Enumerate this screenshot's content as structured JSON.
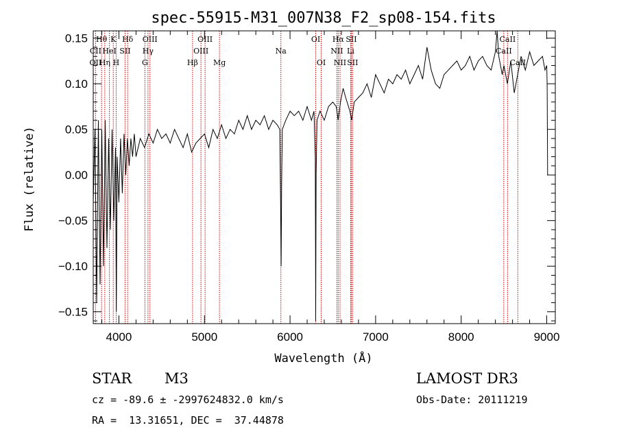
{
  "chart_data": {
    "type": "line",
    "title": "spec-55915-M31_007N38_F2_sp08-154.fits",
    "xlabel": "Wavelength (Å)",
    "ylabel": "Flux (relative)",
    "xlim": [
      3700,
      9100
    ],
    "ylim": [
      -0.163,
      0.158
    ],
    "xticks": [
      4000,
      5000,
      6000,
      7000,
      8000,
      9000
    ],
    "xtick_labels": [
      "4000",
      "5000",
      "6000",
      "7000",
      "8000",
      "9000"
    ],
    "yticks": [
      -0.15,
      -0.1,
      -0.05,
      0.0,
      0.05,
      0.1,
      0.15
    ],
    "ytick_labels": [
      "−0.15",
      "−0.10",
      "−0.05",
      "0.00",
      "0.05",
      "0.10",
      "0.15"
    ],
    "series": [
      {
        "name": "flux",
        "points": [
          [
            3700,
            -0.03
          ],
          [
            3720,
            0.05
          ],
          [
            3740,
            -0.14
          ],
          [
            3760,
            0.06
          ],
          [
            3780,
            -0.12
          ],
          [
            3800,
            0.05
          ],
          [
            3820,
            -0.1
          ],
          [
            3840,
            0.06
          ],
          [
            3860,
            -0.08
          ],
          [
            3880,
            0.04
          ],
          [
            3900,
            -0.06
          ],
          [
            3920,
            0.05
          ],
          [
            3940,
            -0.05
          ],
          [
            3960,
            0.03
          ],
          [
            3970,
            -0.15
          ],
          [
            3980,
            0.02
          ],
          [
            4000,
            -0.03
          ],
          [
            4020,
            0.04
          ],
          [
            4040,
            -0.02
          ],
          [
            4060,
            0.045
          ],
          [
            4080,
            0.0
          ],
          [
            4100,
            0.04
          ],
          [
            4120,
            0.01
          ],
          [
            4140,
            0.04
          ],
          [
            4160,
            0.02
          ],
          [
            4180,
            0.045
          ],
          [
            4200,
            0.02
          ],
          [
            4250,
            0.04
          ],
          [
            4300,
            0.03
          ],
          [
            4350,
            0.045
          ],
          [
            4400,
            0.035
          ],
          [
            4450,
            0.05
          ],
          [
            4500,
            0.04
          ],
          [
            4550,
            0.045
          ],
          [
            4600,
            0.035
          ],
          [
            4650,
            0.05
          ],
          [
            4700,
            0.04
          ],
          [
            4750,
            0.03
          ],
          [
            4800,
            0.045
          ],
          [
            4850,
            0.025
          ],
          [
            4900,
            0.035
          ],
          [
            4950,
            0.04
          ],
          [
            5000,
            0.045
          ],
          [
            5050,
            0.03
          ],
          [
            5100,
            0.05
          ],
          [
            5150,
            0.04
          ],
          [
            5200,
            0.055
          ],
          [
            5250,
            0.04
          ],
          [
            5300,
            0.05
          ],
          [
            5350,
            0.045
          ],
          [
            5400,
            0.06
          ],
          [
            5450,
            0.05
          ],
          [
            5500,
            0.065
          ],
          [
            5550,
            0.05
          ],
          [
            5600,
            0.06
          ],
          [
            5650,
            0.055
          ],
          [
            5700,
            0.065
          ],
          [
            5750,
            0.05
          ],
          [
            5800,
            0.06
          ],
          [
            5850,
            0.055
          ],
          [
            5880,
            0.05
          ],
          [
            5890,
            -0.03
          ],
          [
            5896,
            -0.1
          ],
          [
            5902,
            -0.01
          ],
          [
            5910,
            0.05
          ],
          [
            5950,
            0.06
          ],
          [
            6000,
            0.07
          ],
          [
            6050,
            0.065
          ],
          [
            6100,
            0.07
          ],
          [
            6150,
            0.06
          ],
          [
            6200,
            0.075
          ],
          [
            6250,
            0.06
          ],
          [
            6280,
            0.07
          ],
          [
            6295,
            0.02
          ],
          [
            6300,
            -0.16
          ],
          [
            6305,
            0.0
          ],
          [
            6315,
            0.06
          ],
          [
            6350,
            0.07
          ],
          [
            6400,
            0.06
          ],
          [
            6450,
            0.075
          ],
          [
            6500,
            0.08
          ],
          [
            6540,
            0.075
          ],
          [
            6563,
            0.06
          ],
          [
            6590,
            0.08
          ],
          [
            6620,
            0.095
          ],
          [
            6650,
            0.085
          ],
          [
            6700,
            0.07
          ],
          [
            6720,
            0.06
          ],
          [
            6750,
            0.08
          ],
          [
            6800,
            0.085
          ],
          [
            6850,
            0.09
          ],
          [
            6900,
            0.1
          ],
          [
            6950,
            0.085
          ],
          [
            7000,
            0.11
          ],
          [
            7050,
            0.1
          ],
          [
            7100,
            0.09
          ],
          [
            7150,
            0.105
          ],
          [
            7200,
            0.1
          ],
          [
            7250,
            0.11
          ],
          [
            7300,
            0.105
          ],
          [
            7350,
            0.115
          ],
          [
            7400,
            0.1
          ],
          [
            7450,
            0.11
          ],
          [
            7500,
            0.12
          ],
          [
            7550,
            0.105
          ],
          [
            7600,
            0.14
          ],
          [
            7650,
            0.115
          ],
          [
            7700,
            0.1
          ],
          [
            7750,
            0.095
          ],
          [
            7800,
            0.11
          ],
          [
            7850,
            0.115
          ],
          [
            7900,
            0.12
          ],
          [
            7950,
            0.125
          ],
          [
            8000,
            0.115
          ],
          [
            8050,
            0.12
          ],
          [
            8100,
            0.13
          ],
          [
            8150,
            0.115
          ],
          [
            8200,
            0.125
          ],
          [
            8250,
            0.13
          ],
          [
            8300,
            0.12
          ],
          [
            8350,
            0.115
          ],
          [
            8400,
            0.135
          ],
          [
            8420,
            0.16
          ],
          [
            8440,
            0.13
          ],
          [
            8480,
            0.11
          ],
          [
            8500,
            0.12
          ],
          [
            8540,
            0.1
          ],
          [
            8580,
            0.125
          ],
          [
            8620,
            0.09
          ],
          [
            8660,
            0.11
          ],
          [
            8700,
            0.13
          ],
          [
            8750,
            0.115
          ],
          [
            8800,
            0.135
          ],
          [
            8850,
            0.12
          ],
          [
            8900,
            0.125
          ],
          [
            8950,
            0.13
          ],
          [
            8980,
            0.115
          ],
          [
            9000,
            0.12
          ],
          [
            9005,
            0.1
          ],
          [
            9010,
            0.0
          ]
        ]
      }
    ],
    "line_labels": [
      {
        "label": "Hθ",
        "x": 3797,
        "row": 1
      },
      {
        "label": "K",
        "x": 3934,
        "row": 1
      },
      {
        "label": "Hδ",
        "x": 4102,
        "row": 1
      },
      {
        "label": "OIII",
        "x": 4363,
        "row": 1
      },
      {
        "label": "OIII",
        "x": 5007,
        "row": 1
      },
      {
        "label": "OI",
        "x": 6300,
        "row": 1
      },
      {
        "label": "Hα",
        "x": 6563,
        "row": 1
      },
      {
        "label": "SII",
        "x": 6716,
        "row": 1
      },
      {
        "label": "CaII",
        "x": 8542,
        "row": 1
      },
      {
        "label": "CII",
        "x": 3727,
        "row": 2
      },
      {
        "label": "HeI",
        "x": 3889,
        "row": 2
      },
      {
        "label": "SII",
        "x": 4072,
        "row": 2
      },
      {
        "label": "Hγ",
        "x": 4340,
        "row": 2
      },
      {
        "label": "OIII",
        "x": 4959,
        "row": 2
      },
      {
        "label": "Na",
        "x": 5893,
        "row": 2
      },
      {
        "label": "NII",
        "x": 6548,
        "row": 2
      },
      {
        "label": "Li",
        "x": 6708,
        "row": 2
      },
      {
        "label": "CaII",
        "x": 8498,
        "row": 2
      },
      {
        "label": "OII",
        "x": 3727,
        "row": 3
      },
      {
        "label": "Hη",
        "x": 3835,
        "row": 3
      },
      {
        "label": "H",
        "x": 3968,
        "row": 3
      },
      {
        "label": "G",
        "x": 4304,
        "row": 3
      },
      {
        "label": "Hβ",
        "x": 4861,
        "row": 3
      },
      {
        "label": "Mg",
        "x": 5175,
        "row": 3
      },
      {
        "label": "OI",
        "x": 6364,
        "row": 3
      },
      {
        "label": "NII",
        "x": 6584,
        "row": 3
      },
      {
        "label": "SII",
        "x": 6731,
        "row": 3
      },
      {
        "label": "CaII",
        "x": 8662,
        "row": 3
      }
    ],
    "line_positions": [
      3727,
      3797,
      3835,
      3889,
      3934,
      3968,
      4072,
      4102,
      4304,
      4340,
      4363,
      4861,
      4959,
      5007,
      5175,
      5893,
      6300,
      6364,
      6548,
      6563,
      6584,
      6708,
      6716,
      6731,
      8498,
      8542,
      8662
    ],
    "line_color": "#cc0000"
  },
  "info": {
    "object_class": "STAR",
    "subclass": "M3",
    "survey": "LAMOST DR3",
    "redshift_text": "cz = -89.6 ± -2997624832.0 km/s",
    "obs_date_text": "Obs-Date: 20111219",
    "coords_text": "RA =  13.31651, DEC =  37.44878"
  }
}
